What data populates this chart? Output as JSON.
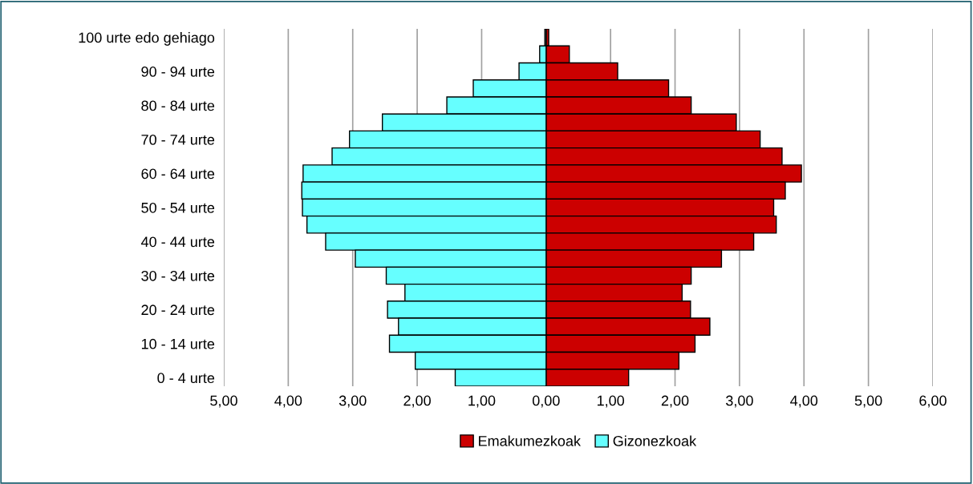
{
  "chart_data": {
    "type": "bar",
    "orientation": "horizontal",
    "categories": [
      "100 urte edo gehiago",
      null,
      "90 - 94 urte",
      null,
      "80 - 84 urte",
      null,
      "70 - 74 urte",
      null,
      "60 - 64 urte",
      null,
      "50 - 54 urte",
      null,
      "40 - 44 urte",
      null,
      "30 - 34 urte",
      null,
      "20 - 24 urte",
      null,
      "10 - 14 urte",
      null,
      "0 - 4 urte"
    ],
    "series": [
      {
        "name": "Emakumezkoak",
        "color": "#cc0000",
        "values": [
          0.04,
          0.36,
          1.11,
          1.9,
          2.25,
          2.95,
          3.32,
          3.66,
          3.96,
          3.71,
          3.53,
          3.57,
          3.22,
          2.72,
          2.25,
          2.11,
          2.24,
          2.54,
          2.31,
          2.06,
          1.28
        ]
      },
      {
        "name": "Gizonezkoak",
        "color": "#66ffff",
        "values": [
          -0.02,
          -0.1,
          -0.42,
          -1.13,
          -1.54,
          -2.54,
          -3.05,
          -3.32,
          -3.77,
          -3.79,
          -3.78,
          -3.71,
          -3.42,
          -2.96,
          -2.48,
          -2.19,
          -2.46,
          -2.29,
          -2.43,
          -2.03,
          -1.41
        ]
      }
    ],
    "xlim": [
      -5,
      6
    ],
    "xticks": [
      {
        "value": -5,
        "label": "5,00"
      },
      {
        "value": -4,
        "label": "4,00"
      },
      {
        "value": -3,
        "label": "3,00"
      },
      {
        "value": -2,
        "label": "2,00"
      },
      {
        "value": -1,
        "label": "1,00"
      },
      {
        "value": 0,
        "label": "0,00"
      },
      {
        "value": 1,
        "label": "1,00"
      },
      {
        "value": 2,
        "label": "2,00"
      },
      {
        "value": 3,
        "label": "3,00"
      },
      {
        "value": 4,
        "label": "4,00"
      },
      {
        "value": 5,
        "label": "5,00"
      },
      {
        "value": 6,
        "label": "6,00"
      }
    ],
    "grid": "x",
    "legend": "bottom",
    "stacked": true
  }
}
